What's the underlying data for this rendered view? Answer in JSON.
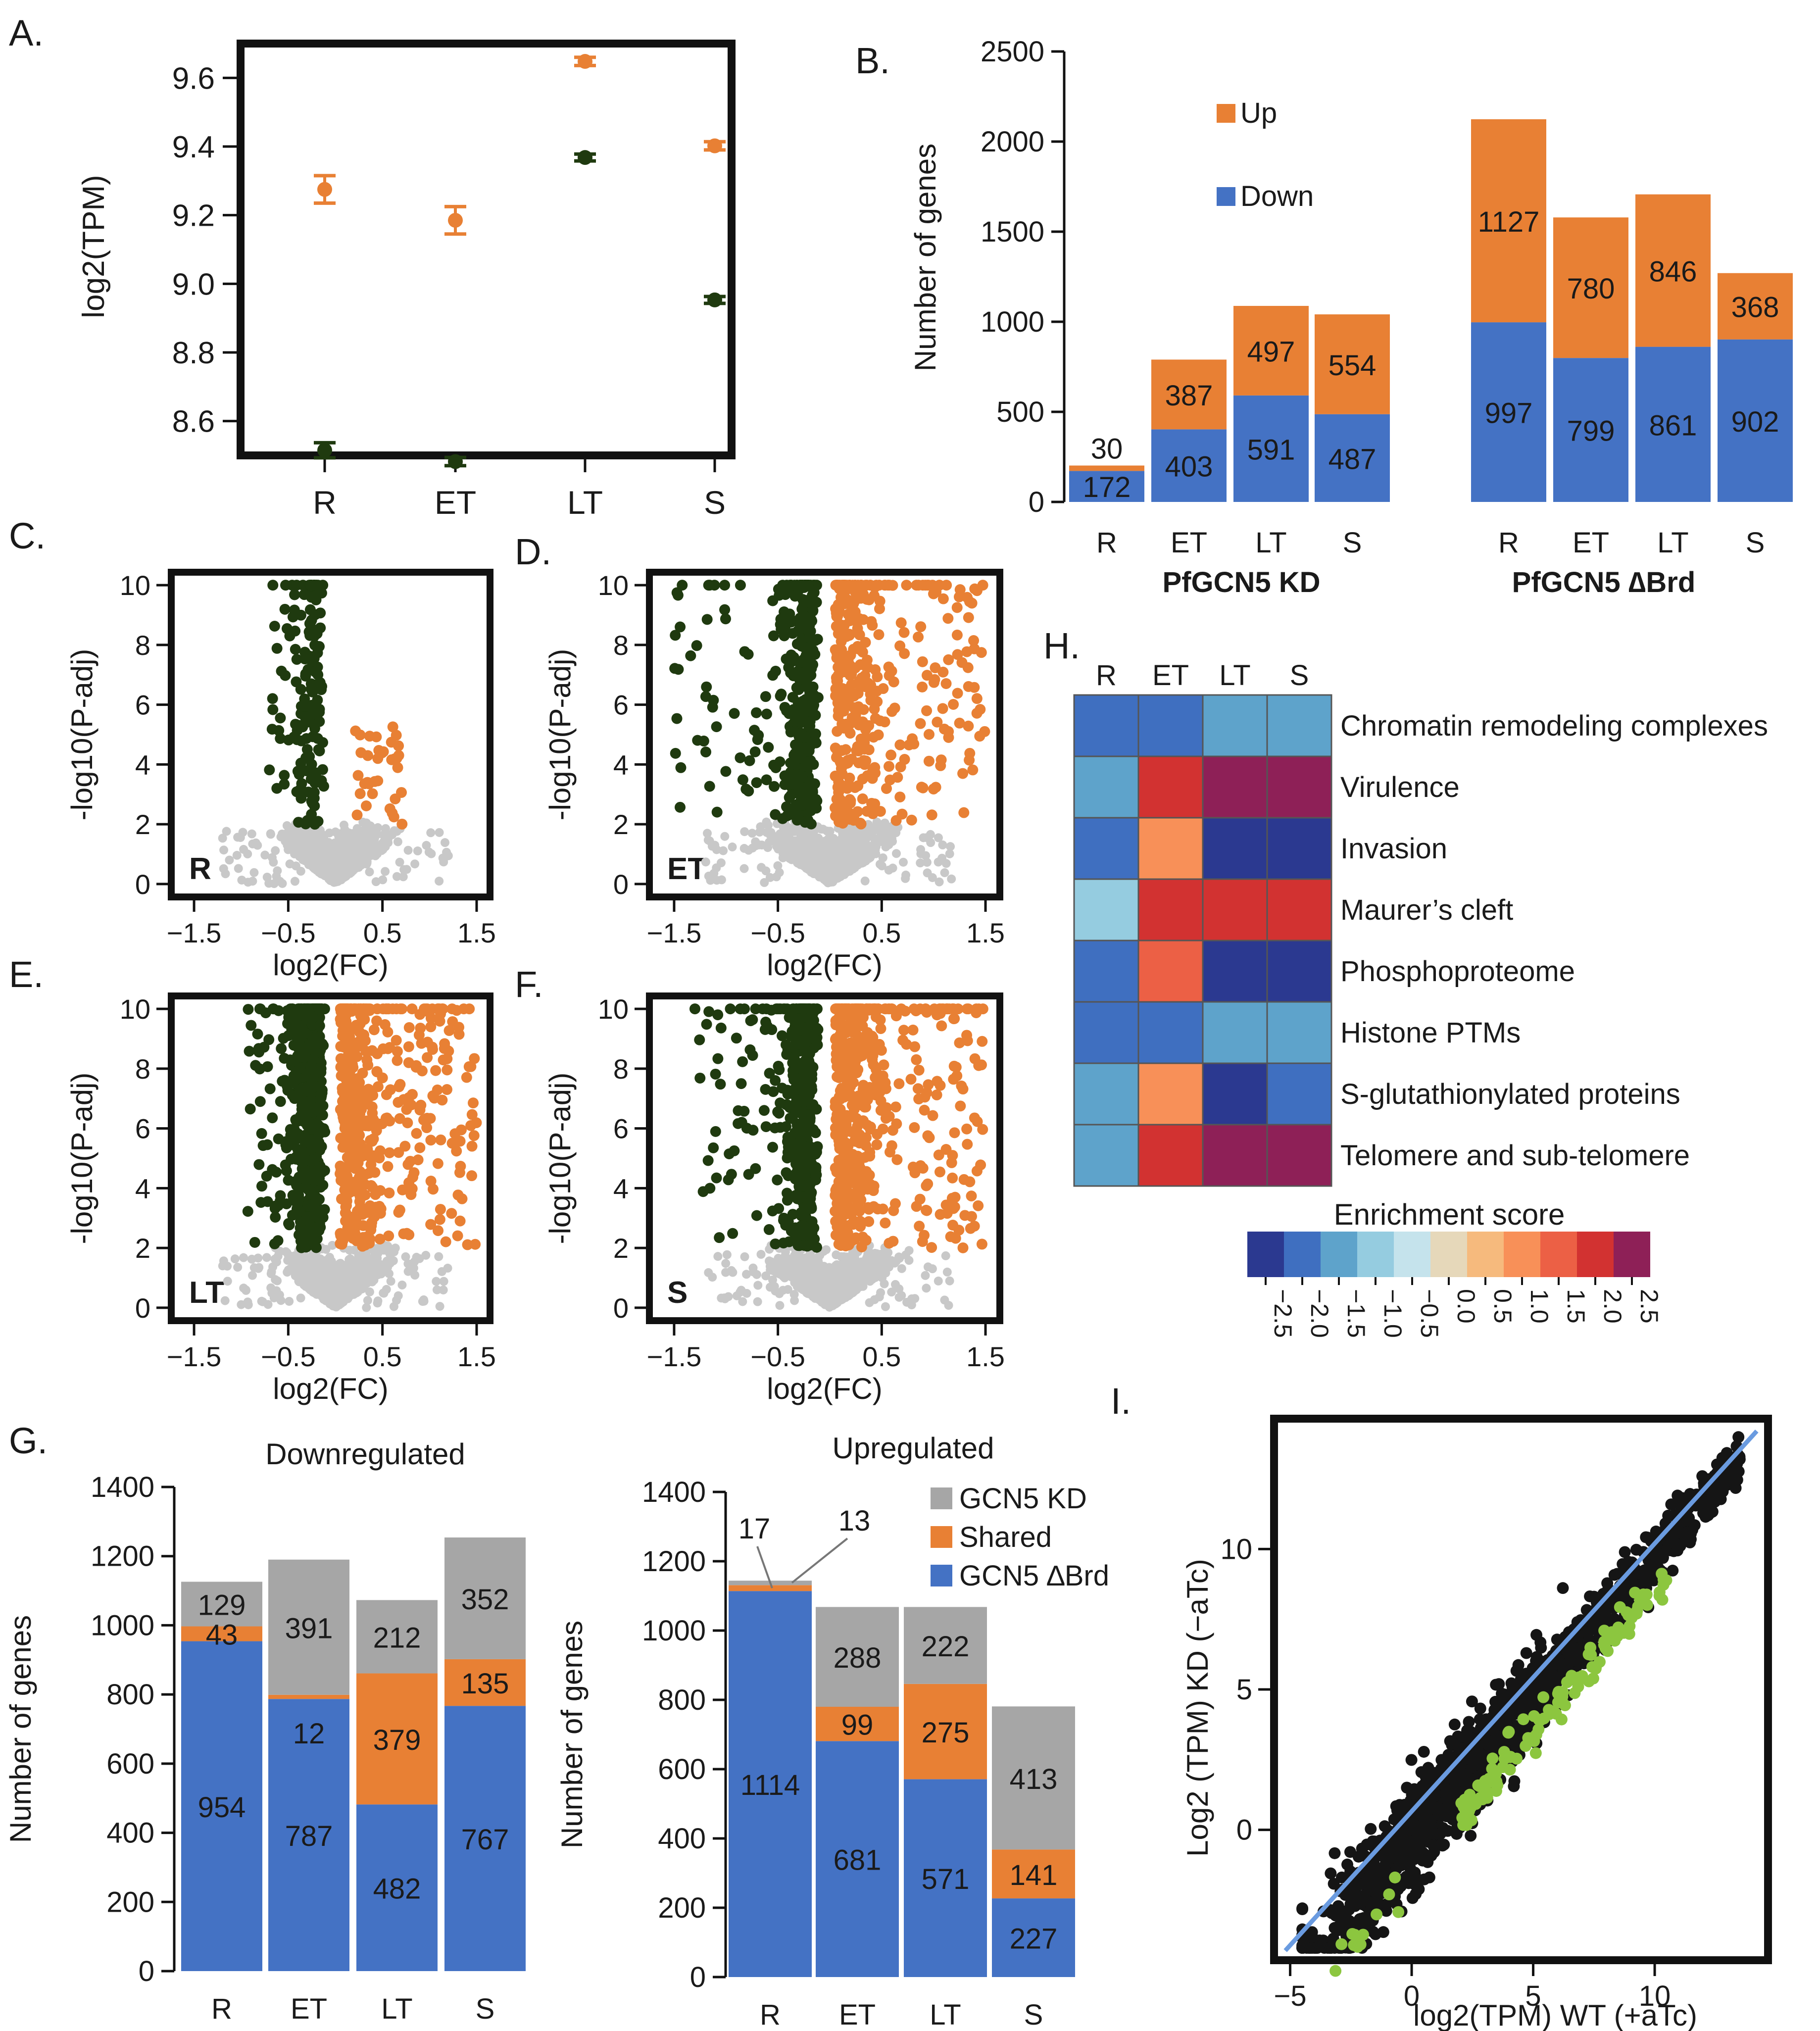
{
  "colors": {
    "orange": "#E88034",
    "dark_green": "#1F3A0F",
    "blue": "#4472C4",
    "gray": "#A6A6A6",
    "light_gray": "#C8C8C8",
    "lime": "#8CC63F",
    "black": "#151515"
  },
  "chart_data": [
    {
      "panel": "A.",
      "type": "scatter",
      "ylabel": "log2(TPM)",
      "categories": [
        "R",
        "ET",
        "LT",
        "S"
      ],
      "yticks": [
        "8.6",
        "8.8",
        "9.0",
        "9.2",
        "9.4",
        "9.6"
      ],
      "ylim": [
        8.5,
        9.7
      ],
      "series": [
        {
          "name": "orange",
          "color": "#E88034",
          "values": [
            9.275,
            9.185,
            9.648,
            9.402
          ],
          "errors": [
            0.04,
            0.04,
            0.012,
            0.012
          ]
        },
        {
          "name": "green",
          "color": "#1F3A0F",
          "values": [
            8.515,
            8.482,
            9.368,
            8.953
          ],
          "errors": [
            0.022,
            0.012,
            0.01,
            0.01
          ]
        }
      ]
    },
    {
      "panel": "B.",
      "type": "bar",
      "ylabel": "Number of genes",
      "yticks": [
        "0",
        "500",
        "1000",
        "1500",
        "2000",
        "2500"
      ],
      "ylim": [
        0,
        2500
      ],
      "categories": [
        "R",
        "ET",
        "LT",
        "S",
        "R",
        "ET",
        "LT",
        "S"
      ],
      "groups": [
        "PfGCN5 KD",
        "PfGCN5 ∆Brd"
      ],
      "series": [
        {
          "name": "Down",
          "color": "#4472C4",
          "values": [
            172,
            403,
            591,
            487,
            997,
            799,
            861,
            902
          ]
        },
        {
          "name": "Up",
          "color": "#E88034",
          "values": [
            30,
            387,
            497,
            554,
            1127,
            780,
            846,
            368
          ]
        }
      ],
      "legend": [
        "Up",
        "Down"
      ],
      "legend_position": "top-left"
    },
    {
      "panel": "C.",
      "type": "scatter",
      "label": "R",
      "xlabel": "log2(FC)",
      "ylabel": "-log10(P-adj)",
      "xticks": [
        "−1.5",
        "−0.5",
        "0.5",
        "1.5"
      ],
      "yticks": [
        "0",
        "2",
        "4",
        "6",
        "8",
        "10"
      ],
      "xlim": [
        -1.7,
        1.6
      ],
      "ylim": [
        -0.3,
        10.3
      ],
      "spread": {
        "neg_x": 0.7,
        "pos_x": 1.05,
        "pos_y": 5.3,
        "up_count": 35,
        "down_count": 160
      }
    },
    {
      "panel": "D.",
      "type": "scatter",
      "label": "ET",
      "xlabel": "log2(FC)",
      "ylabel": "-log10(P-adj)",
      "xticks": [
        "−1.5",
        "−0.5",
        "0.5",
        "1.5"
      ],
      "yticks": [
        "0",
        "2",
        "4",
        "6",
        "8",
        "10"
      ],
      "xlim": [
        -1.7,
        1.6
      ],
      "ylim": [
        -0.3,
        10.3
      ],
      "spread": {
        "neg_x": 1.5,
        "pos_x": 1.5,
        "pos_y": 10,
        "up_count": 380,
        "down_count": 400
      }
    },
    {
      "panel": "E.",
      "type": "scatter",
      "label": "LT",
      "xlabel": "log2(FC)",
      "ylabel": "-log10(P-adj)",
      "xticks": [
        "−1.5",
        "−0.5",
        "0.5",
        "1.5"
      ],
      "yticks": [
        "0",
        "2",
        "4",
        "6",
        "8",
        "10"
      ],
      "xlim": [
        -1.7,
        1.6
      ],
      "ylim": [
        -0.3,
        10.3
      ],
      "spread": {
        "neg_x": 0.95,
        "pos_x": 1.5,
        "pos_y": 10,
        "up_count": 490,
        "down_count": 580
      }
    },
    {
      "panel": "F.",
      "type": "scatter",
      "label": "S",
      "xlabel": "log2(FC)",
      "ylabel": "-log10(P-adj)",
      "xticks": [
        "−1.5",
        "−0.5",
        "0.5",
        "1.5"
      ],
      "yticks": [
        "0",
        "2",
        "4",
        "6",
        "8",
        "10"
      ],
      "xlim": [
        -1.7,
        1.6
      ],
      "ylim": [
        -0.3,
        10.3
      ],
      "spread": {
        "neg_x": 1.3,
        "pos_x": 1.5,
        "pos_y": 10,
        "up_count": 540,
        "down_count": 480
      }
    },
    {
      "panel": "G.",
      "type": "bar",
      "title": "Downregulated",
      "ylabel": "Number of genes",
      "categories": [
        "R",
        "ET",
        "LT",
        "S"
      ],
      "yticks": [
        "0",
        "200",
        "400",
        "600",
        "800",
        "1000",
        "1200",
        "1400"
      ],
      "ylim": [
        0,
        1400
      ],
      "series": [
        {
          "name": "GCN5 ∆Brd",
          "color": "#4472C4",
          "values": [
            954,
            787,
            482,
            767
          ]
        },
        {
          "name": "Shared",
          "color": "#E88034",
          "values": [
            43,
            12,
            379,
            135
          ]
        },
        {
          "name": "GCN5 KD",
          "color": "#A6A6A6",
          "values": [
            129,
            391,
            212,
            352
          ]
        }
      ]
    },
    {
      "panel": "G.",
      "type": "bar",
      "title": "Upregulated",
      "ylabel": "Number of genes",
      "categories": [
        "R",
        "ET",
        "LT",
        "S"
      ],
      "yticks": [
        "0",
        "200",
        "400",
        "600",
        "800",
        "1000",
        "1200",
        "1400"
      ],
      "ylim": [
        0,
        1400
      ],
      "series": [
        {
          "name": "GCN5 ∆Brd",
          "color": "#4472C4",
          "values": [
            1114,
            681,
            571,
            227
          ]
        },
        {
          "name": "Shared",
          "color": "#E88034",
          "values": [
            17,
            99,
            275,
            141
          ]
        },
        {
          "name": "GCN5 KD",
          "color": "#A6A6A6",
          "values": [
            13,
            288,
            222,
            413
          ]
        }
      ],
      "legend": [
        "GCN5 KD",
        "Shared",
        "GCN5 ∆Brd"
      ],
      "legend_position": "top-right"
    },
    {
      "panel": "H.",
      "type": "heatmap",
      "columns": [
        "R",
        "ET",
        "LT",
        "S"
      ],
      "rows": [
        "Chromatin remodeling complexes",
        "Virulence",
        "Invasion",
        "Maurer’s cleft",
        "Phosphoproteome",
        "Histone PTMs",
        "S-glutathionylated proteins",
        "Telomere and sub-telomere"
      ],
      "values": [
        [
          -2,
          -2,
          -1.5,
          -1.5
        ],
        [
          -1.5,
          2,
          2.5,
          2.5
        ],
        [
          -2,
          1,
          -2.5,
          -2.5
        ],
        [
          -1,
          2,
          2,
          2
        ],
        [
          -2,
          1.5,
          -2.5,
          -2.5
        ],
        [
          -2,
          -2,
          -1.5,
          -1.5
        ],
        [
          -1.5,
          1,
          -2.5,
          -2
        ],
        [
          -1.5,
          2,
          2.5,
          2.5
        ]
      ],
      "colorbar_title": "Enrichment score",
      "colorbar_ticks": [
        "−2.5",
        "−2.0",
        "−1.5",
        "−1.0",
        "−0.5",
        "0.0",
        "0.5",
        "1.0",
        "1.5",
        "2.0",
        "2.5"
      ],
      "colorbar_colors": [
        "#2B3990",
        "#3F6FC0",
        "#5EA3CB",
        "#95CCE0",
        "#C5E3EC",
        "#E6D8BA",
        "#F6BA7D",
        "#F89058",
        "#EC6045",
        "#D23231",
        "#8E2057"
      ]
    },
    {
      "panel": "I.",
      "type": "scatter",
      "xlabel": "log2(TPM) WT (+aTc)",
      "ylabel": "Log2 (TPM) KD (−aTc)",
      "xticks": [
        "−5",
        "0",
        "5",
        "10"
      ],
      "yticks": [
        "0",
        "5",
        "10"
      ],
      "xlim": [
        -5.5,
        14.5
      ],
      "ylim": [
        -4.5,
        14.5
      ],
      "diagonal": "y = x",
      "series": [
        {
          "name": "all genes",
          "color": "#151515",
          "count": 1400
        },
        {
          "name": "highlighted",
          "color": "#8CC63F",
          "count": 140
        }
      ]
    }
  ]
}
